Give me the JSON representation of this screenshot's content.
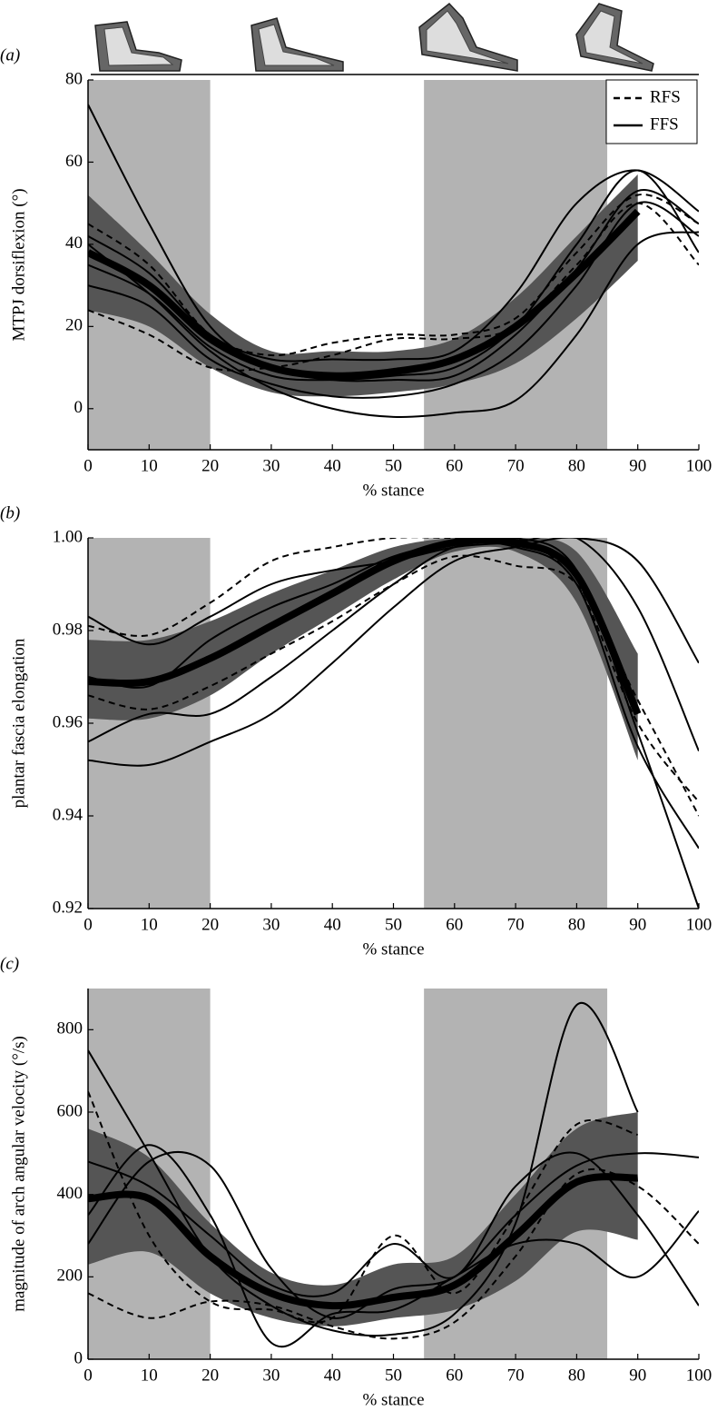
{
  "chart_data": [
    {
      "type": "line",
      "panel_label": "(a)",
      "ylabel": "MTPJ dorsiflexion (°)",
      "xlabel": "% stance",
      "xlim": [
        0,
        100
      ],
      "xticks": [
        0,
        10,
        20,
        30,
        40,
        50,
        60,
        70,
        80,
        90,
        100
      ],
      "ylim": [
        -10,
        80
      ],
      "yticks": [
        0,
        20,
        40,
        60,
        80
      ],
      "shaded": [
        [
          0,
          20
        ],
        [
          55,
          85
        ]
      ],
      "shade_color": "#b3b3b3",
      "band_color": "#555555",
      "line_color": "#000000",
      "legend": [
        {
          "label": "RFS",
          "dashed": true
        },
        {
          "label": "FFS",
          "dashed": false
        }
      ],
      "x": [
        0,
        10,
        20,
        30,
        40,
        50,
        60,
        70,
        80,
        90,
        100
      ],
      "band": {
        "lower": [
          24,
          20,
          10,
          4,
          3,
          4,
          6,
          11,
          22,
          36,
          null
        ],
        "upper": [
          52,
          38,
          23,
          14,
          14,
          14,
          17,
          27,
          42,
          57,
          null
        ]
      },
      "mean": [
        38,
        30,
        17,
        10,
        8,
        9,
        12,
        20,
        33,
        48,
        null
      ],
      "series": [
        {
          "dashed": true,
          "values": [
            24,
            18,
            10,
            10,
            13,
            17,
            17,
            20,
            35,
            50,
            35
          ]
        },
        {
          "dashed": true,
          "values": [
            45,
            35,
            18,
            13,
            16,
            18,
            18,
            22,
            38,
            52,
            45
          ]
        },
        {
          "dashed": false,
          "values": [
            74,
            45,
            20,
            10,
            7,
            7,
            8,
            18,
            34,
            53,
            45
          ]
        },
        {
          "dashed": false,
          "values": [
            40,
            28,
            14,
            5,
            0,
            -2,
            -1,
            2,
            18,
            40,
            43
          ]
        },
        {
          "dashed": false,
          "values": [
            30,
            25,
            12,
            6,
            3,
            3,
            6,
            14,
            30,
            50,
            42
          ]
        },
        {
          "dashed": false,
          "values": [
            42,
            33,
            18,
            12,
            12,
            12,
            14,
            28,
            50,
            58,
            48
          ]
        },
        {
          "dashed": false,
          "values": [
            35,
            28,
            15,
            8,
            7,
            8,
            10,
            20,
            40,
            58,
            38
          ]
        }
      ]
    },
    {
      "type": "line",
      "panel_label": "(b)",
      "ylabel": "plantar fascia elongation",
      "xlabel": "% stance",
      "xlim": [
        0,
        100
      ],
      "xticks": [
        0,
        10,
        20,
        30,
        40,
        50,
        60,
        70,
        80,
        90,
        100
      ],
      "ylim": [
        0.92,
        1.0
      ],
      "yticks": [
        {
          "value": 0.92,
          "label": "0.92"
        },
        {
          "value": 0.94,
          "label": "0.94"
        },
        {
          "value": 0.96,
          "label": "0.96"
        },
        {
          "value": 0.98,
          "label": "0.98"
        },
        {
          "value": 1.0,
          "label": "1.00"
        }
      ],
      "shaded": [
        [
          0,
          20
        ],
        [
          55,
          85
        ]
      ],
      "shade_color": "#b3b3b3",
      "band_color": "#555555",
      "line_color": "#000000",
      "x": [
        0,
        10,
        20,
        30,
        40,
        50,
        60,
        70,
        80,
        90,
        100
      ],
      "band": {
        "lower": [
          0.961,
          0.961,
          0.966,
          0.975,
          0.983,
          0.991,
          0.997,
          0.997,
          0.986,
          0.952,
          null
        ],
        "upper": [
          0.978,
          0.978,
          0.982,
          0.988,
          0.993,
          0.998,
          1.0,
          1.0,
          0.997,
          0.975,
          null
        ]
      },
      "mean": [
        0.969,
        0.969,
        0.974,
        0.981,
        0.988,
        0.995,
        0.999,
        0.999,
        0.992,
        0.962,
        null
      ],
      "series": [
        {
          "dashed": true,
          "values": [
            0.981,
            0.979,
            0.986,
            0.995,
            0.998,
            1.0,
            1.0,
            1.0,
            0.99,
            0.96,
            0.943
          ]
        },
        {
          "dashed": true,
          "values": [
            0.966,
            0.963,
            0.968,
            0.975,
            0.982,
            0.99,
            0.996,
            0.994,
            0.99,
            0.965,
            0.94
          ]
        },
        {
          "dashed": false,
          "values": [
            0.952,
            0.951,
            0.956,
            0.962,
            0.973,
            0.985,
            0.995,
            0.998,
            1.0,
            0.995,
            0.973
          ]
        },
        {
          "dashed": false,
          "values": [
            0.983,
            0.977,
            0.983,
            0.99,
            0.993,
            0.995,
            0.998,
            0.999,
            1.0,
            0.985,
            0.954
          ]
        },
        {
          "dashed": false,
          "values": [
            0.956,
            0.962,
            0.962,
            0.97,
            0.98,
            0.99,
            0.998,
            0.998,
            0.99,
            0.955,
            0.933
          ]
        },
        {
          "dashed": false,
          "values": [
            0.97,
            0.968,
            0.978,
            0.985,
            0.99,
            0.996,
            0.999,
            1.0,
            0.993,
            0.958,
            0.92
          ]
        }
      ]
    },
    {
      "type": "line",
      "panel_label": "(c)",
      "ylabel": "magnitude of arch angular velocity (°/s)",
      "xlabel": "% stance",
      "xlim": [
        0,
        100
      ],
      "xticks": [
        0,
        10,
        20,
        30,
        40,
        50,
        60,
        70,
        80,
        90,
        100
      ],
      "ylim": [
        0,
        900
      ],
      "yticks": [
        0,
        200,
        400,
        600,
        800
      ],
      "shaded": [
        [
          0,
          20
        ],
        [
          55,
          85
        ]
      ],
      "shade_color": "#b3b3b3",
      "band_color": "#555555",
      "line_color": "#000000",
      "x": [
        0,
        10,
        20,
        30,
        40,
        50,
        60,
        70,
        80,
        90,
        100
      ],
      "band": {
        "lower": [
          230,
          260,
          160,
          100,
          80,
          100,
          120,
          190,
          310,
          290,
          null
        ],
        "upper": [
          560,
          490,
          330,
          210,
          180,
          230,
          250,
          400,
          560,
          600,
          null
        ]
      },
      "mean": [
        390,
        390,
        250,
        160,
        130,
        150,
        180,
        300,
        430,
        440,
        null
      ],
      "series": [
        {
          "dashed": true,
          "values": [
            650,
            300,
            140,
            120,
            100,
            300,
            160,
            350,
            570,
            545,
            null
          ]
        },
        {
          "dashed": true,
          "values": [
            160,
            100,
            140,
            130,
            80,
            50,
            90,
            250,
            450,
            420,
            280
          ]
        },
        {
          "dashed": false,
          "values": [
            750,
            500,
            250,
            130,
            70,
            60,
            110,
            330,
            860,
            600,
            null
          ]
        },
        {
          "dashed": false,
          "values": [
            280,
            480,
            470,
            220,
            100,
            170,
            200,
            350,
            470,
            500,
            490
          ]
        },
        {
          "dashed": false,
          "values": [
            480,
            420,
            300,
            180,
            160,
            280,
            200,
            420,
            500,
            350,
            130
          ]
        },
        {
          "dashed": false,
          "values": [
            350,
            520,
            350,
            40,
            110,
            120,
            200,
            280,
            280,
            200,
            360
          ]
        }
      ]
    }
  ]
}
